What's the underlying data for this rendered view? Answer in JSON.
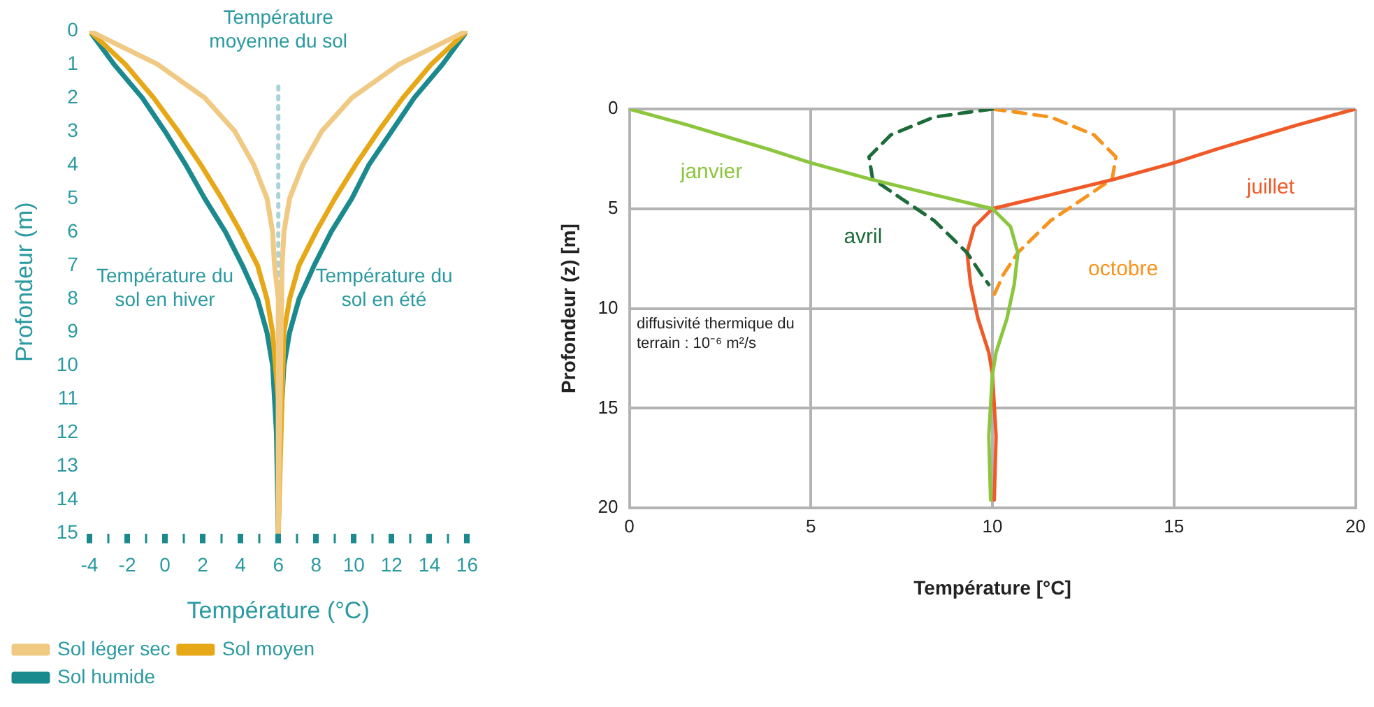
{
  "chart_data": [
    {
      "type": "line",
      "xlabel": "Température (°C)",
      "ylabel": "Profondeur (m)",
      "xlim": [
        -4,
        16
      ],
      "ylim": [
        15,
        0
      ],
      "xticks": [
        -4,
        {
          "value": -3,
          "label": null
        },
        -2,
        {
          "value": -1,
          "label": null
        },
        0,
        {
          "value": 1,
          "label": null
        },
        2,
        {
          "value": 3,
          "label": null
        },
        4,
        {
          "value": 5,
          "label": null
        },
        6,
        {
          "value": 7,
          "label": null
        },
        8,
        {
          "value": 9,
          "label": null
        },
        10,
        {
          "value": 11,
          "label": null
        },
        12,
        {
          "value": 13,
          "label": null
        },
        14,
        {
          "value": 15,
          "label": null
        },
        16
      ],
      "yticks": [
        0,
        1,
        2,
        3,
        4,
        5,
        6,
        7,
        8,
        9,
        10,
        11,
        12,
        13,
        14,
        15
      ],
      "grid": false,
      "legend": "bottom left",
      "ref_lines": [
        {
          "axis": "x",
          "value": 6,
          "label": "Température moyenne du sol",
          "color": "#a9d3d8",
          "line_style": "dotted"
        }
      ],
      "annotations": [
        "Température du sol en hiver",
        "Température du sol en été"
      ],
      "series": [
        {
          "name": "Sol léger sec",
          "color": "#f0c983",
          "x": [
            -4,
            -0.4,
            2.1,
            3.7,
            4.7,
            5.4,
            5.7,
            5.8,
            6,
            6,
            6.2,
            6.3,
            6.6,
            7.3,
            8.3,
            9.9,
            12.4,
            16
          ],
          "values": [
            0,
            1,
            2,
            3,
            4,
            5,
            6,
            7,
            8,
            15,
            7,
            6,
            5,
            4,
            3,
            2,
            1,
            0
          ]
        },
        {
          "name": "Sol moyen",
          "color": "#e6a817",
          "x": [
            -4,
            -2.1,
            -0.6,
            0.7,
            1.9,
            3.0,
            4.0,
            4.9,
            5.4,
            5.7,
            6,
            6,
            6.3,
            6.6,
            7.1,
            8.0,
            9.0,
            10.1,
            11.3,
            12.6,
            14.1,
            16
          ],
          "values": [
            0,
            1,
            2,
            3,
            4,
            5,
            6,
            7,
            8,
            9,
            11,
            15,
            9,
            8,
            7,
            6,
            5,
            4,
            3,
            2,
            1,
            0
          ]
        },
        {
          "name": "Sol humide",
          "color": "#1a8a8e",
          "x": [
            -4,
            -2.7,
            -1.2,
            0,
            1.1,
            2.1,
            3.2,
            4.1,
            4.9,
            5.4,
            5.7,
            5.9,
            6,
            6.1,
            6.3,
            6.6,
            7.1,
            7.9,
            8.8,
            9.9,
            10.8,
            12,
            13.2,
            14.7,
            16
          ],
          "values": [
            0,
            1,
            2,
            3,
            4,
            5,
            6,
            7,
            8,
            9,
            10,
            12,
            15,
            12,
            10,
            9,
            8,
            7,
            6,
            5,
            4,
            3,
            2,
            1,
            0
          ]
        }
      ]
    },
    {
      "type": "line",
      "xlabel": "Température [°C]",
      "ylabel": "Profondeur (z) [m]",
      "xlim": [
        0,
        20
      ],
      "ylim": [
        20,
        0
      ],
      "xticks": [
        0,
        5,
        10,
        15,
        20
      ],
      "yticks": [
        0,
        5,
        10,
        15,
        20
      ],
      "grid": true,
      "annotations": [
        "diffusivité thermique du terrain : 10⁻⁶ m²/s"
      ],
      "series": [
        {
          "name": "janvier",
          "color": "#8cc63f",
          "x": [
            0,
            1.6,
            3.8,
            5.0,
            6.6,
            8.4,
            10.0,
            10.5,
            10.7,
            10.6,
            10.4,
            10.1,
            10.0,
            9.9,
            9.95
          ],
          "values": [
            0,
            0.8,
            2.0,
            2.7,
            3.5,
            4.3,
            5.0,
            5.9,
            7.2,
            8.8,
            10.5,
            12.2,
            13.3,
            16.4,
            19.6
          ]
        },
        {
          "name": "avril",
          "color": "#1e6b3a",
          "line_style": "dashed",
          "x": [
            10,
            8.4,
            7.2,
            6.6,
            6.7,
            7.5,
            8.4,
            9.3,
            9.7,
            9.9
          ],
          "values": [
            0,
            0.4,
            1.3,
            2.4,
            3.5,
            4.5,
            5.6,
            7.2,
            8.3,
            8.8
          ]
        },
        {
          "name": "juillet",
          "color": "#ef5a28",
          "x": [
            20,
            18.4,
            16.2,
            15,
            13.4,
            11.6,
            10,
            9.5,
            9.3,
            9.4,
            9.6,
            9.9,
            10,
            10.1,
            10.05
          ],
          "values": [
            0,
            0.8,
            2.0,
            2.7,
            3.5,
            4.3,
            5.0,
            5.9,
            7.2,
            8.8,
            10.5,
            12.2,
            13.3,
            16.4,
            19.6
          ]
        },
        {
          "name": "octobre",
          "color": "#f7941d",
          "line_style": "dashed",
          "x": [
            10,
            11.6,
            12.8,
            13.4,
            13.3,
            12.5,
            11.6,
            10.7,
            10.3,
            10.0
          ],
          "values": [
            0,
            0.4,
            1.3,
            2.4,
            3.5,
            4.5,
            5.6,
            7.2,
            8.3,
            9.5
          ]
        }
      ]
    }
  ]
}
